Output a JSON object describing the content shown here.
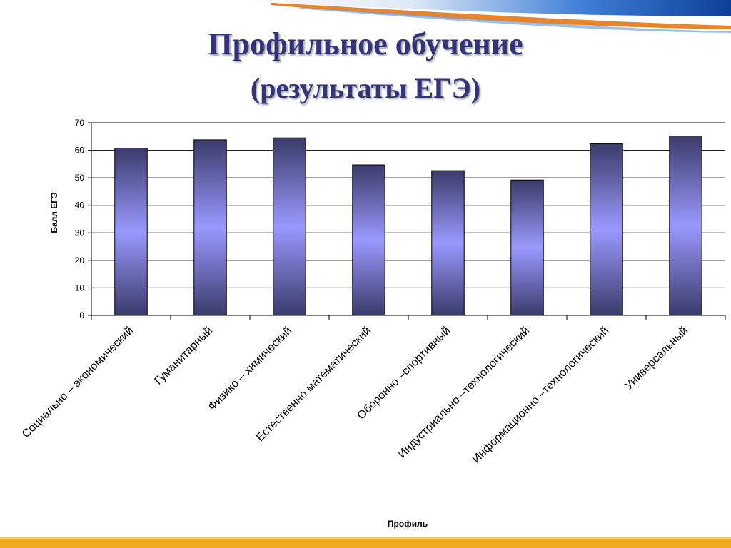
{
  "slide": {
    "title": "Профильное обучение",
    "subtitle": "(результаты ЕГЭ)"
  },
  "colors": {
    "title": "#33337a",
    "bar_light": "#9999ff",
    "bar_dark": "#3b3b6b",
    "top_stripe_blue": "#1f5fb8",
    "top_stripe_orange": "#e8842a",
    "bottom_stripe": "#f2a81d"
  },
  "chart_data": {
    "type": "bar",
    "categories": [
      "Социально – экономический",
      "Гуманитарный",
      "Физико  – химический",
      "Естественно математический",
      "Оборонно –спортивный",
      "Индустриально –технологический",
      "Информационно –технологический",
      "Универсальный"
    ],
    "values": [
      60.8,
      63.8,
      64.5,
      54.7,
      52.6,
      49.2,
      62.4,
      65.2
    ],
    "ylabel": "Балл ЕГЭ",
    "xlabel": "Профиль",
    "ylim": [
      0,
      70
    ],
    "yticks": [
      0,
      10,
      20,
      30,
      40,
      50,
      60,
      70
    ],
    "grid": true,
    "legend": "none"
  }
}
